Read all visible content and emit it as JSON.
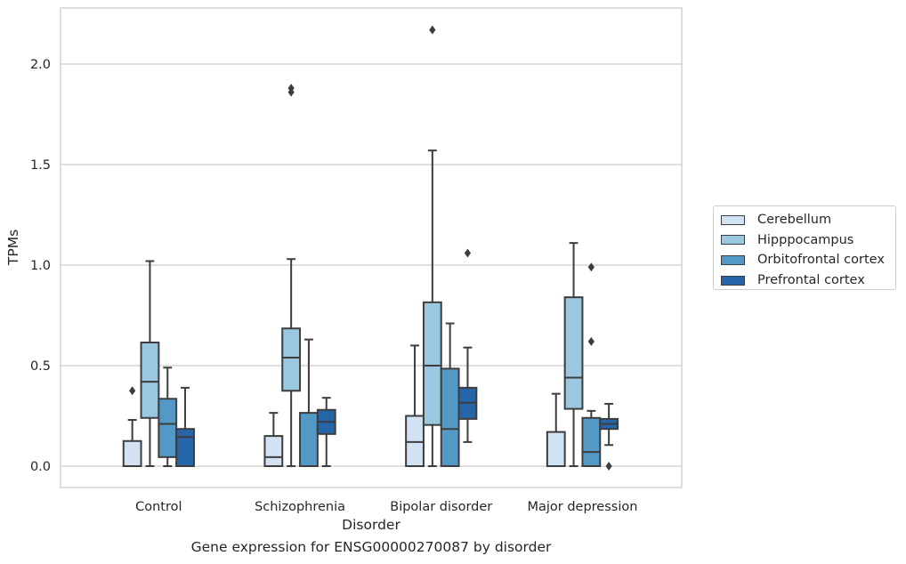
{
  "caption": "Gene expression for ENSG00000270087 by disorder",
  "chart_data": {
    "type": "box",
    "title": "",
    "xlabel": "Disorder",
    "ylabel": "TPMs",
    "ylim": [
      -0.1,
      2.3
    ],
    "yticks": [
      "0.0",
      "0.5",
      "1.0",
      "1.5",
      "2.0"
    ],
    "ytick_values": [
      0.0,
      0.5,
      1.0,
      1.5,
      2.0
    ],
    "grid": "horizontal",
    "legend_position": "right",
    "categories": [
      "Control",
      "Schizophrenia",
      "Bipolar disorder",
      "Major depression"
    ],
    "series": [
      {
        "name": "Cerebellum",
        "color": "#d1e2f2",
        "boxes": [
          {
            "min": 0.0,
            "q1": 0.0,
            "median": 0.0,
            "q3": 0.125,
            "max": 0.23,
            "outliers": [
              0.375
            ]
          },
          {
            "min": 0.0,
            "q1": 0.0,
            "median": 0.045,
            "q3": 0.15,
            "max": 0.265,
            "outliers": []
          },
          {
            "min": 0.0,
            "q1": 0.0,
            "median": 0.12,
            "q3": 0.25,
            "max": 0.6,
            "outliers": []
          },
          {
            "min": 0.0,
            "q1": 0.0,
            "median": 0.0,
            "q3": 0.17,
            "max": 0.36,
            "outliers": []
          }
        ]
      },
      {
        "name": "Hipppocampus",
        "color": "#9ac8e0",
        "boxes": [
          {
            "min": 0.0,
            "q1": 0.24,
            "median": 0.42,
            "q3": 0.615,
            "max": 1.02,
            "outliers": []
          },
          {
            "min": 0.0,
            "q1": 0.375,
            "median": 0.54,
            "q3": 0.685,
            "max": 1.03,
            "outliers": [
              1.86,
              1.88
            ]
          },
          {
            "min": 0.0,
            "q1": 0.205,
            "median": 0.5,
            "q3": 0.815,
            "max": 1.57,
            "outliers": [
              2.17
            ]
          },
          {
            "min": 0.0,
            "q1": 0.285,
            "median": 0.44,
            "q3": 0.84,
            "max": 1.11,
            "outliers": []
          }
        ]
      },
      {
        "name": "Orbitofrontal cortex",
        "color": "#5399c5",
        "boxes": [
          {
            "min": 0.0,
            "q1": 0.045,
            "median": 0.21,
            "q3": 0.335,
            "max": 0.49,
            "outliers": []
          },
          {
            "min": 0.0,
            "q1": 0.0,
            "median": 0.0,
            "q3": 0.265,
            "max": 0.63,
            "outliers": []
          },
          {
            "min": 0.0,
            "q1": 0.0,
            "median": 0.185,
            "q3": 0.485,
            "max": 0.71,
            "outliers": []
          },
          {
            "min": 0.0,
            "q1": 0.0,
            "median": 0.07,
            "q3": 0.24,
            "max": 0.275,
            "outliers": [
              0.62,
              0.99
            ]
          }
        ]
      },
      {
        "name": "Prefrontal cortex",
        "color": "#2565a8",
        "boxes": [
          {
            "min": 0.0,
            "q1": 0.0,
            "median": 0.145,
            "q3": 0.185,
            "max": 0.39,
            "outliers": []
          },
          {
            "min": 0.0,
            "q1": 0.16,
            "median": 0.22,
            "q3": 0.28,
            "max": 0.34,
            "outliers": []
          },
          {
            "min": 0.12,
            "q1": 0.235,
            "median": 0.315,
            "q3": 0.39,
            "max": 0.59,
            "outliers": [
              1.06
            ]
          },
          {
            "min": 0.105,
            "q1": 0.185,
            "median": 0.21,
            "q3": 0.235,
            "max": 0.31,
            "outliers": [
              0.0
            ]
          }
        ]
      }
    ]
  }
}
